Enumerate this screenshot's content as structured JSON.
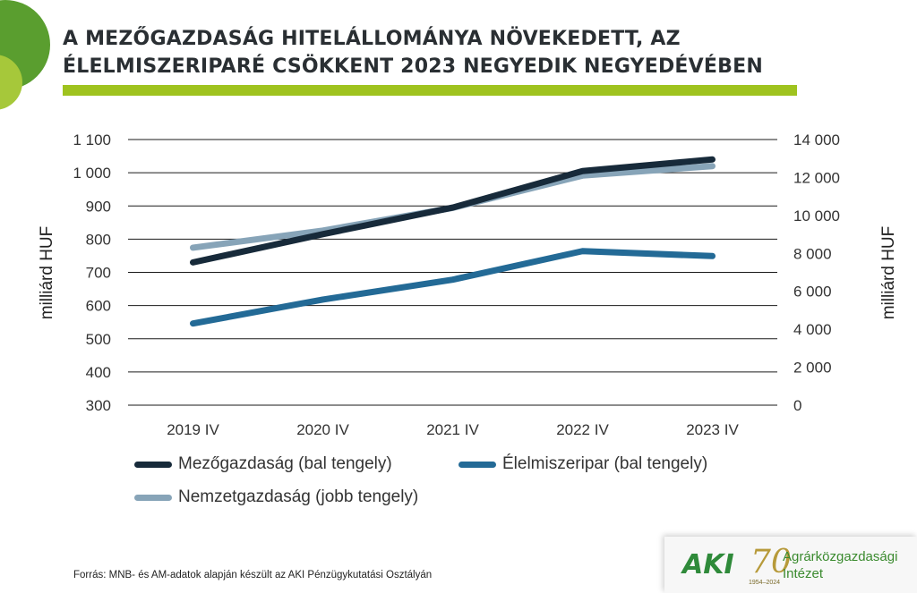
{
  "colors": {
    "accent": "#9fc31f",
    "circle_dark": "#5a9e2f",
    "circle_light": "#a6c83a",
    "gridline": "#1a1a1a"
  },
  "header": {
    "title_line1": "A MEZŐGAZDASÁG HITELÁLLOMÁNYA NÖVEKEDETT, AZ",
    "title_line2": "ÉLELMISZERIPARÉ CSÖKKENT 2023 NEGYEDIK NEGYEDÉVÉBEN"
  },
  "footer": {
    "source": "Forrás: MNB- és AM-adatok alapján készült az AKI Pénzügykutatási Osztályán",
    "logo_aki": "AKI",
    "logo_70": "70",
    "logo_years": "1954–2024",
    "logo_name_line1": "Agrárközgazdasági",
    "logo_name_line2": "Intézet"
  },
  "chart_data": {
    "type": "line",
    "title": "A MEZŐGAZDASÁG HITELÁLLOMÁNYA NÖVEKEDETT, AZ ÉLELMISZERIPARÉ CSÖKKENT 2023 NEGYEDIK NEGYEDÉVÉBEN",
    "categories": [
      "2019 IV",
      "2020 IV",
      "2021 IV",
      "2022 IV",
      "2023 IV"
    ],
    "ylabel_left": "milliárd HUF",
    "ylabel_right": "milliárd HUF",
    "ylim_left": [
      300,
      1100
    ],
    "ylim_right": [
      0,
      14000
    ],
    "yticks_left": [
      300,
      400,
      500,
      600,
      700,
      800,
      900,
      1000,
      1100
    ],
    "yticks_right": [
      0,
      2000,
      4000,
      6000,
      8000,
      10000,
      12000,
      14000
    ],
    "ytick_labels_left": [
      "300",
      "400",
      "500",
      "600",
      "700",
      "800",
      "900",
      "1 000",
      "1 100"
    ],
    "ytick_labels_right": [
      "0",
      "2 000",
      "4 000",
      "6 000",
      "8 000",
      "10 000",
      "12 000",
      "14 000"
    ],
    "grid": true,
    "legend_position": "bottom",
    "series": [
      {
        "name": "Mezőgazdaság (bal tengely)",
        "axis": "left",
        "color": "#172a3a",
        "values": [
          730,
          815,
          895,
          1005,
          1040
        ]
      },
      {
        "name": "Élelmiszeripar (bal tengely)",
        "axis": "left",
        "color": "#236a96",
        "values": [
          546,
          618,
          678,
          764,
          749
        ]
      },
      {
        "name": "Nemzetgazdaság (jobb tengely)",
        "axis": "right",
        "color": "#87a4b8",
        "values": [
          8300,
          9200,
          10400,
          12100,
          12600
        ]
      }
    ]
  }
}
